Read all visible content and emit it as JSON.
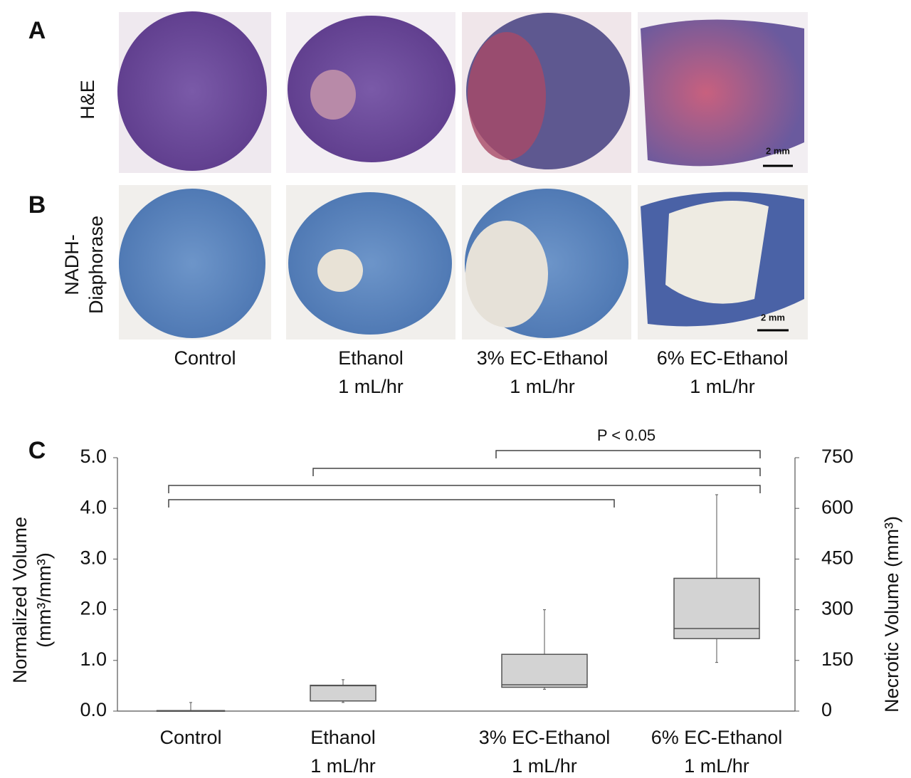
{
  "panels": {
    "a_label": "A",
    "b_label": "B",
    "c_label": "C",
    "row_a": "H&E",
    "row_b": [
      "NADH-",
      "Diaphorase"
    ],
    "scale_a": "2 mm",
    "scale_b": "2 mm",
    "columns": [
      [
        "Control"
      ],
      [
        "Ethanol",
        "1 mL/hr"
      ],
      [
        "3% EC-Ethanol",
        "1 mL/hr"
      ],
      [
        "6% EC-Ethanol",
        "1 mL/hr"
      ]
    ]
  },
  "chart_data": {
    "type": "box",
    "categories": [
      [
        "Control"
      ],
      [
        "Ethanol",
        "1 mL/hr"
      ],
      [
        "3% EC-Ethanol",
        "1 mL/hr"
      ],
      [
        "6% EC-Ethanol",
        "1 mL/hr"
      ]
    ],
    "boxes": [
      {
        "min": 0,
        "q1": 0,
        "median": 0,
        "q3": 0.01,
        "max": 0.17
      },
      {
        "min": 0.17,
        "q1": 0.2,
        "median": 0.5,
        "q3": 0.51,
        "max": 0.62
      },
      {
        "min": 0.43,
        "q1": 0.47,
        "median": 0.52,
        "q3": 1.12,
        "max": 2.0
      },
      {
        "min": 0.96,
        "q1": 1.43,
        "median": 1.63,
        "q3": 2.62,
        "max": 4.27
      }
    ],
    "color": "#d3d3d3",
    "ylabel": [
      "Normalized Volume",
      "(mm³/mm³)"
    ],
    "y2label": "Necrotic Volume (mm³)",
    "ylim": [
      0,
      5
    ],
    "yticks": [
      {
        "value": 0,
        "label": "0.0"
      },
      {
        "value": 1,
        "label": "1.0"
      },
      {
        "value": 2,
        "label": "2.0"
      },
      {
        "value": 3,
        "label": "3.0"
      },
      {
        "value": 4,
        "label": "4.0"
      },
      {
        "value": 5,
        "label": "5.0"
      }
    ],
    "y2lim": [
      0,
      750
    ],
    "y2ticks": [
      0,
      150,
      300,
      450,
      600,
      750
    ],
    "annotation": "P < 0.05"
  }
}
